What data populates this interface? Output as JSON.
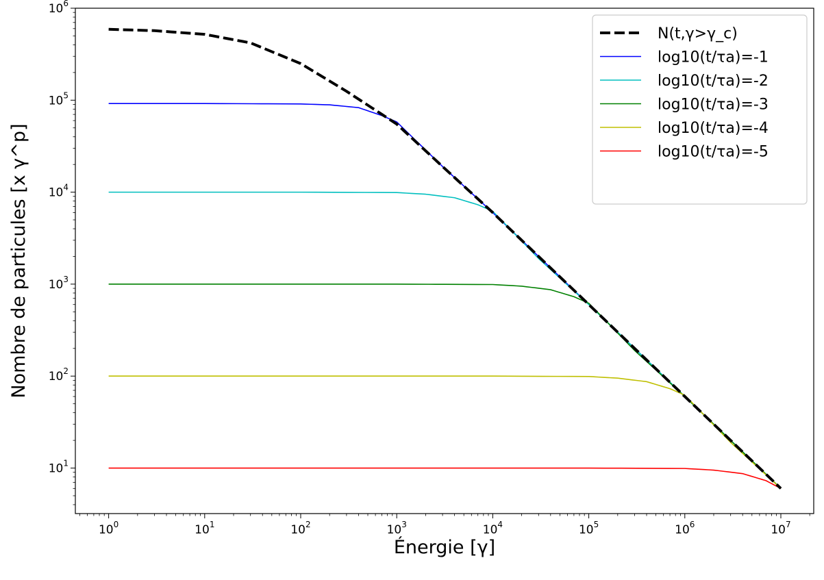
{
  "chart_data": {
    "type": "line",
    "xlabel": "Énergie [γ]",
    "ylabel": "Nombre de particules [x γ^p]",
    "xscale": "log",
    "yscale": "log",
    "xlim": [
      0.45,
      22000000
    ],
    "ylim": [
      3.2,
      1000000
    ],
    "x_ticks": [
      {
        "base": "10",
        "exp": "0"
      },
      {
        "base": "10",
        "exp": "1"
      },
      {
        "base": "10",
        "exp": "2"
      },
      {
        "base": "10",
        "exp": "3"
      },
      {
        "base": "10",
        "exp": "4"
      },
      {
        "base": "10",
        "exp": "5"
      },
      {
        "base": "10",
        "exp": "6"
      },
      {
        "base": "10",
        "exp": "7"
      }
    ],
    "y_ticks": [
      {
        "base": "10",
        "exp": "1"
      },
      {
        "base": "10",
        "exp": "2"
      },
      {
        "base": "10",
        "exp": "3"
      },
      {
        "base": "10",
        "exp": "4"
      },
      {
        "base": "10",
        "exp": "5"
      },
      {
        "base": "10",
        "exp": "6"
      }
    ],
    "grid": false,
    "legend_position": "top-right",
    "series": [
      {
        "name": "N(t,γ>γ_c)",
        "color": "#000000",
        "style": "dashed",
        "x": [
          1,
          3,
          10,
          30,
          100,
          300,
          1000,
          3000,
          10000,
          100000,
          1000000,
          10000000
        ],
        "y": [
          590000,
          570000,
          520000,
          420000,
          250000,
          125000,
          55000,
          19000,
          6000,
          600,
          60,
          6
        ]
      },
      {
        "name": "log10(t/τa)=-1",
        "color": "#0000ff",
        "style": "solid",
        "x": [
          1,
          10,
          100,
          200,
          400,
          700,
          1000,
          3000,
          10000,
          100000,
          1000000,
          10000000
        ],
        "y": [
          92000,
          92000,
          91000,
          89000,
          83000,
          68000,
          58000,
          19000,
          6000,
          600,
          60,
          6
        ]
      },
      {
        "name": "log10(t/τa)=-2",
        "color": "#00bfbf",
        "style": "solid",
        "x": [
          1,
          100,
          1000,
          2000,
          4000,
          7000,
          10000,
          30000,
          100000,
          1000000,
          10000000
        ],
        "y": [
          10000,
          10000,
          9900,
          9500,
          8700,
          7300,
          6200,
          1900,
          600,
          60,
          6
        ]
      },
      {
        "name": "log10(t/τa)=-3",
        "color": "#008000",
        "style": "solid",
        "x": [
          1,
          1000,
          10000,
          20000,
          40000,
          70000,
          100000,
          300000,
          1000000,
          10000000
        ],
        "y": [
          1000,
          1000,
          990,
          950,
          870,
          730,
          620,
          190,
          60,
          6
        ]
      },
      {
        "name": "log10(t/τa)=-4",
        "color": "#bfbf00",
        "style": "solid",
        "x": [
          1,
          10000,
          100000,
          200000,
          400000,
          700000,
          1000000,
          3000000,
          10000000
        ],
        "y": [
          100,
          100,
          99,
          95,
          87,
          73,
          62,
          19,
          6
        ]
      },
      {
        "name": "log10(t/τa)=-5",
        "color": "#ff0000",
        "style": "solid",
        "x": [
          1,
          100000,
          1000000,
          2000000,
          4000000,
          7000000,
          10000000
        ],
        "y": [
          10,
          10,
          9.9,
          9.5,
          8.7,
          7.3,
          6
        ]
      }
    ]
  }
}
